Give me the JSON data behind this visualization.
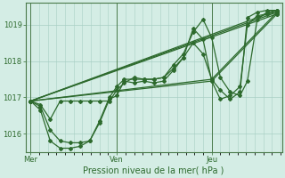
{
  "title": "Pression niveau de la mer( hPa )",
  "background_color": "#d4ede5",
  "plot_bg_color": "#d4ede5",
  "grid_color": "#a8cfc4",
  "line_color": "#2d6a2d",
  "tick_color": "#2d6a2d",
  "border_color": "#4a7a4a",
  "ylim": [
    1015.5,
    1019.6
  ],
  "yticks": [
    1016,
    1017,
    1018,
    1019
  ],
  "xtick_labels": [
    "Mer",
    "Ven",
    "Jeu"
  ],
  "xtick_positions": [
    0.0,
    0.35,
    0.735
  ],
  "series": [
    {
      "x": [
        0.0,
        0.04,
        0.08,
        0.12,
        0.16,
        0.2,
        0.24,
        0.28,
        0.32,
        0.35,
        0.38,
        0.42,
        0.46,
        0.5,
        0.54,
        0.58,
        0.62,
        0.66,
        0.7,
        0.735,
        0.77,
        0.81,
        0.85,
        0.88,
        0.92,
        0.96,
        1.0
      ],
      "y": [
        1016.9,
        1016.8,
        1016.4,
        1016.9,
        1016.9,
        1016.9,
        1016.9,
        1016.9,
        1016.9,
        1017.2,
        1017.4,
        1017.55,
        1017.5,
        1017.5,
        1017.55,
        1017.8,
        1018.1,
        1018.5,
        1018.2,
        1017.5,
        1017.2,
        1016.95,
        1017.15,
        1019.2,
        1019.35,
        1019.4,
        1019.4
      ]
    },
    {
      "x": [
        0.0,
        0.04,
        0.08,
        0.12,
        0.16,
        0.2,
        0.24,
        0.28,
        0.32,
        0.35,
        0.38,
        0.42,
        0.46,
        0.5,
        0.54,
        0.58,
        0.62,
        0.66,
        0.7,
        0.735,
        0.77,
        0.81,
        0.85,
        0.88,
        0.92,
        0.96,
        1.0
      ],
      "y": [
        1016.9,
        1016.75,
        1016.1,
        1015.8,
        1015.75,
        1015.75,
        1015.8,
        1016.35,
        1017.0,
        1017.3,
        1017.5,
        1017.5,
        1017.5,
        1017.5,
        1017.55,
        1017.9,
        1018.2,
        1018.8,
        1019.15,
        1018.65,
        1017.55,
        1017.15,
        1017.05,
        1017.45,
        1019.15,
        1019.35,
        1019.4
      ]
    },
    {
      "x": [
        0.0,
        0.04,
        0.08,
        0.12,
        0.16,
        0.2,
        0.24,
        0.28,
        0.32,
        0.35,
        0.38,
        0.42,
        0.46,
        0.5,
        0.54,
        0.58,
        0.62,
        0.66,
        0.7,
        0.735,
        0.77,
        0.81,
        0.85,
        0.88,
        0.92,
        0.96,
        1.0
      ],
      "y": [
        1016.9,
        1016.65,
        1015.8,
        1015.6,
        1015.6,
        1015.65,
        1015.8,
        1016.3,
        1016.95,
        1017.05,
        1017.45,
        1017.4,
        1017.45,
        1017.4,
        1017.45,
        1017.75,
        1018.1,
        1018.9,
        1018.6,
        1017.45,
        1016.95,
        1017.05,
        1017.3,
        1019.0,
        1019.25,
        1019.3,
        1019.35
      ]
    },
    {
      "x": [
        0.0,
        1.0
      ],
      "y": [
        1016.9,
        1019.35
      ]
    },
    {
      "x": [
        0.0,
        1.0
      ],
      "y": [
        1016.9,
        1019.4
      ]
    },
    {
      "x": [
        0.0,
        1.0
      ],
      "y": [
        1016.9,
        1019.3
      ]
    },
    {
      "x": [
        0.0,
        0.735,
        1.0
      ],
      "y": [
        1016.9,
        1017.5,
        1019.35
      ]
    },
    {
      "x": [
        0.0,
        0.735,
        1.0
      ],
      "y": [
        1016.9,
        1017.45,
        1019.3
      ]
    }
  ],
  "vline_positions": [
    0.0,
    0.35,
    0.735
  ]
}
